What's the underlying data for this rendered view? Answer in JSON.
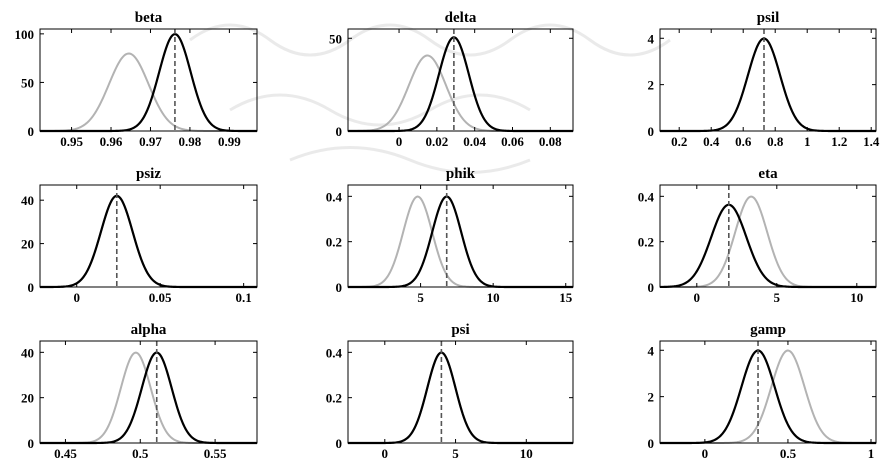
{
  "chart_data": [
    {
      "type": "line",
      "title": "beta",
      "xlim": [
        0.942,
        0.997
      ],
      "ylim": [
        0,
        105
      ],
      "xticks": [
        0.95,
        0.96,
        0.97,
        0.98,
        0.99
      ],
      "yticks": [
        0,
        50,
        100
      ],
      "prior": {
        "dist": "normal",
        "mean": 0.9645,
        "sd": 0.005
      },
      "posterior": {
        "dist": "normal",
        "mean": 0.9762,
        "sd": 0.004
      },
      "mode": 0.9762
    },
    {
      "type": "line",
      "title": "delta",
      "xlim": [
        -0.027,
        0.092
      ],
      "ylim": [
        0,
        55
      ],
      "xticks": [
        0,
        0.02,
        0.04,
        0.06,
        0.08
      ],
      "yticks": [
        0,
        50
      ],
      "prior": {
        "dist": "normal",
        "mean": 0.015,
        "sd": 0.0098
      },
      "posterior": {
        "dist": "normal",
        "mean": 0.029,
        "sd": 0.0079
      },
      "mode": 0.029
    },
    {
      "type": "line",
      "title": "psil",
      "xlim": [
        0.08,
        1.43
      ],
      "ylim": [
        0,
        4.4
      ],
      "xticks": [
        0.2,
        0.4,
        0.6,
        0.8,
        1,
        1.2,
        1.4
      ],
      "yticks": [
        0,
        2,
        4
      ],
      "prior": null,
      "posterior": {
        "dist": "normal",
        "mean": 0.73,
        "sd": 0.1
      },
      "mode": 0.73
    },
    {
      "type": "line",
      "title": "psiz",
      "xlim": [
        -0.022,
        0.108
      ],
      "ylim": [
        0,
        47
      ],
      "xticks": [
        0,
        0.05,
        0.1
      ],
      "yticks": [
        0,
        20,
        40
      ],
      "prior": {
        "dist": "normal",
        "mean": 0.024,
        "sd": 0.0095
      },
      "posterior": {
        "dist": "normal",
        "mean": 0.024,
        "sd": 0.0095
      },
      "mode": 0.024
    },
    {
      "type": "line",
      "title": "phik",
      "xlim": [
        0,
        15.5
      ],
      "ylim": [
        0,
        0.45
      ],
      "xticks": [
        5,
        10,
        15
      ],
      "yticks": [
        0,
        0.2,
        0.4
      ],
      "prior": {
        "dist": "normal",
        "mean": 4.8,
        "sd": 1.0
      },
      "posterior": {
        "dist": "normal",
        "mean": 6.8,
        "sd": 1.0
      },
      "mode": 6.8
    },
    {
      "type": "line",
      "title": "eta",
      "xlim": [
        -2.3,
        11.2
      ],
      "ylim": [
        0,
        0.45
      ],
      "xticks": [
        0,
        5,
        10
      ],
      "yticks": [
        0,
        0.2,
        0.4
      ],
      "prior": {
        "dist": "normal",
        "mean": 3.4,
        "sd": 1.0
      },
      "posterior": {
        "dist": "normal",
        "mean": 2.0,
        "sd": 1.1
      },
      "mode": 2.0
    },
    {
      "type": "line",
      "title": "alpha",
      "xlim": [
        0.433,
        0.578
      ],
      "ylim": [
        0,
        45
      ],
      "xticks": [
        0.45,
        0.5,
        0.55
      ],
      "yticks": [
        0,
        20,
        40
      ],
      "prior": {
        "dist": "normal",
        "mean": 0.497,
        "sd": 0.01
      },
      "posterior": {
        "dist": "normal",
        "mean": 0.511,
        "sd": 0.01
      },
      "mode": 0.511
    },
    {
      "type": "line",
      "title": "psi",
      "xlim": [
        -2.6,
        13.3
      ],
      "ylim": [
        0,
        0.45
      ],
      "xticks": [
        0,
        5,
        10
      ],
      "yticks": [
        0,
        0.2,
        0.4
      ],
      "prior": {
        "dist": "normal",
        "mean": 4.0,
        "sd": 1.0
      },
      "posterior": {
        "dist": "normal",
        "mean": 4.0,
        "sd": 1.0
      },
      "mode": 4.0
    },
    {
      "type": "line",
      "title": "gamp",
      "xlim": [
        -0.27,
        1.03
      ],
      "ylim": [
        0,
        4.4
      ],
      "xticks": [
        0,
        0.5,
        1
      ],
      "yticks": [
        0,
        2,
        4
      ],
      "prior": {
        "dist": "normal",
        "mean": 0.5,
        "sd": 0.1
      },
      "posterior": {
        "dist": "normal",
        "mean": 0.32,
        "sd": 0.1
      },
      "mode": 0.32
    }
  ],
  "colors": {
    "prior": "#b3b3b3",
    "posterior": "#000000",
    "mode_line": "#555555"
  }
}
